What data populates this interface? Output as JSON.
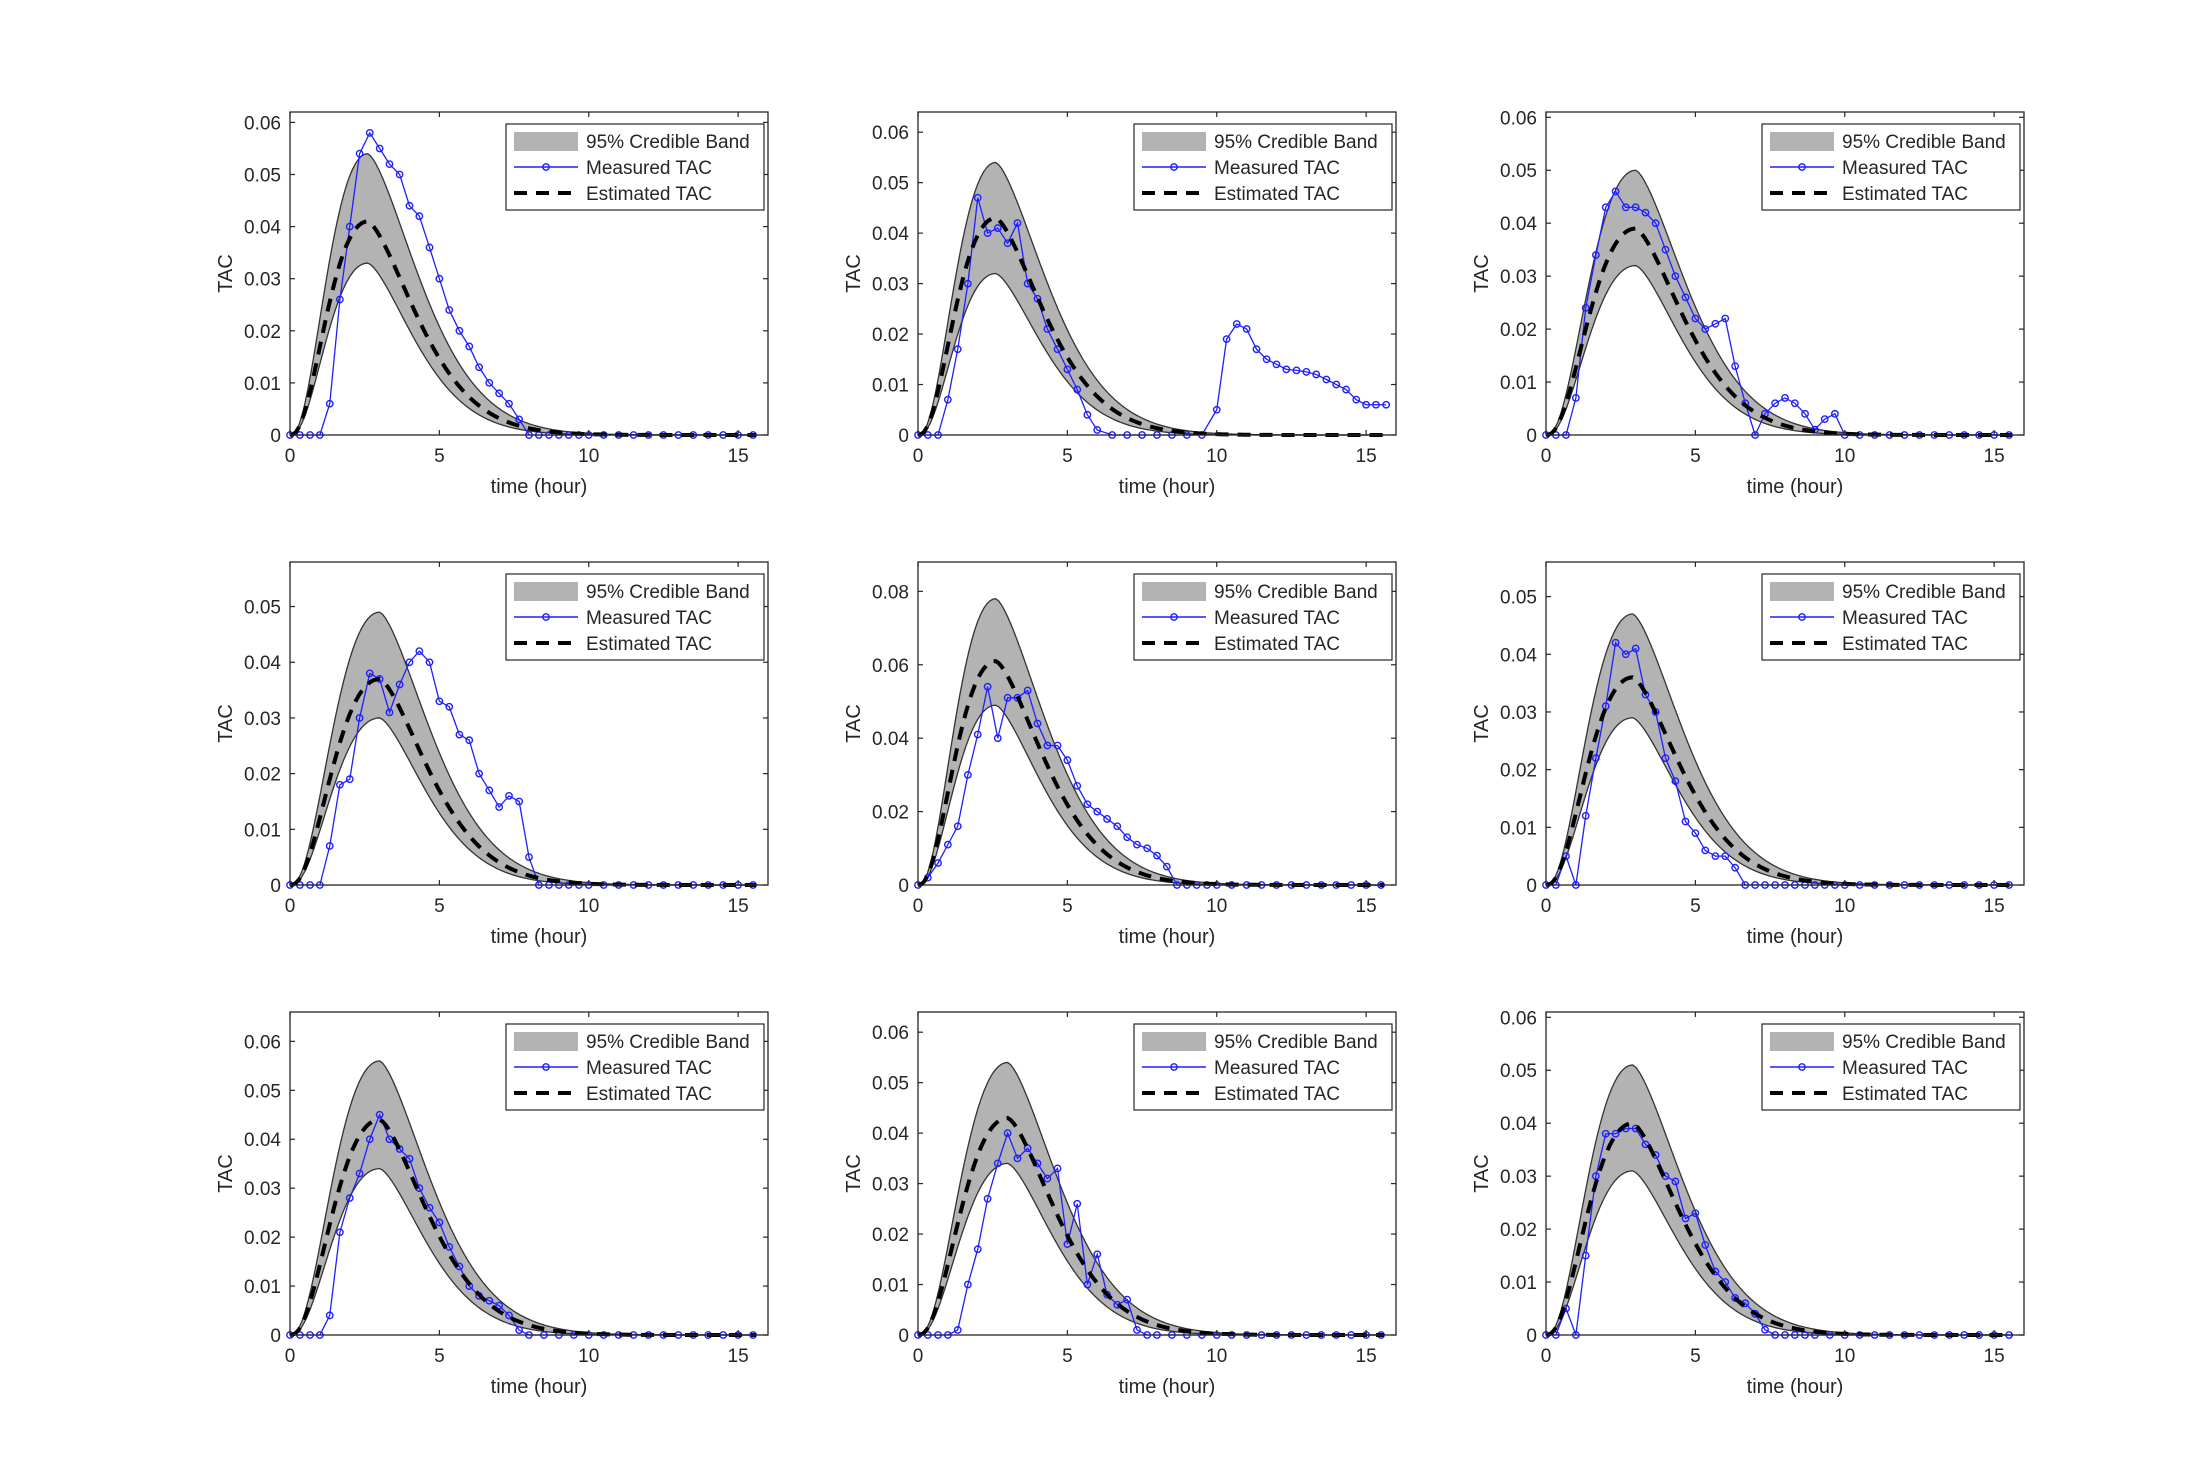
{
  "figure": {
    "panel_count": 9,
    "layout": "3x3"
  },
  "colors": {
    "band_fill": "#b3b3b3",
    "band_edge": "#333333",
    "measured": "#1f1fff",
    "estimated": "#000000",
    "axis": "#262626"
  },
  "chart_data": [
    {
      "type": "line",
      "panel": 1,
      "xlabel": "time (hour)",
      "ylabel": "TAC",
      "xlim": [
        0,
        16
      ],
      "xticks": [
        0,
        5,
        10,
        15
      ],
      "ylim": [
        0,
        0.062
      ],
      "yticks": [
        0,
        0.01,
        0.02,
        0.03,
        0.04,
        0.05,
        0.06
      ],
      "ytick_labels": [
        "0",
        "0.01",
        "0.02",
        "0.03",
        "0.04",
        "0.05",
        "0.06"
      ],
      "legend": [
        "95% Credible Band",
        "Measured TAC",
        "Estimated TAC"
      ],
      "legend_position": "top-right",
      "estimated": {
        "peak_time": 2.6,
        "peak": 0.041,
        "tau": 2.2
      },
      "band": {
        "lower_peak": 0.033,
        "upper_peak": 0.054
      },
      "measured": {
        "x": [
          0,
          0.33,
          0.67,
          1,
          1.33,
          1.67,
          2,
          2.33,
          2.67,
          3,
          3.33,
          3.67,
          4,
          4.33,
          4.67,
          5,
          5.33,
          5.67,
          6,
          6.33,
          6.67,
          7,
          7.33,
          7.67,
          8,
          8.33,
          8.67,
          9,
          9.33,
          9.67,
          10,
          10.5,
          11,
          11.5,
          12,
          12.5,
          13,
          13.5,
          14,
          14.5,
          15,
          15.5
        ],
        "y": [
          0,
          0,
          0,
          0,
          0.006,
          0.026,
          0.04,
          0.054,
          0.058,
          0.055,
          0.052,
          0.05,
          0.044,
          0.042,
          0.036,
          0.03,
          0.024,
          0.02,
          0.017,
          0.013,
          0.01,
          0.008,
          0.006,
          0.003,
          0,
          0,
          0,
          0,
          0,
          0,
          0,
          0,
          0,
          0,
          0,
          0,
          0,
          0,
          0,
          0,
          0,
          0
        ]
      }
    },
    {
      "type": "line",
      "panel": 2,
      "xlabel": "time (hour)",
      "ylabel": "TAC",
      "xlim": [
        0,
        16
      ],
      "xticks": [
        0,
        5,
        10,
        15
      ],
      "ylim": [
        0,
        0.064
      ],
      "yticks": [
        0,
        0.01,
        0.02,
        0.03,
        0.04,
        0.05,
        0.06
      ],
      "ytick_labels": [
        "0",
        "0.01",
        "0.02",
        "0.03",
        "0.04",
        "0.05",
        "0.06"
      ],
      "legend": [
        "95% Credible Band",
        "Measured TAC",
        "Estimated TAC"
      ],
      "legend_position": "top-right",
      "estimated": {
        "peak_time": 2.6,
        "peak": 0.043,
        "tau": 2.2
      },
      "band": {
        "lower_peak": 0.032,
        "upper_peak": 0.054
      },
      "measured": {
        "x": [
          0,
          0.33,
          0.67,
          1,
          1.33,
          1.67,
          2,
          2.33,
          2.67,
          3,
          3.33,
          3.67,
          4,
          4.33,
          4.67,
          5,
          5.33,
          5.67,
          6,
          6.5,
          7,
          7.5,
          8,
          8.5,
          9,
          9.5,
          10,
          10.33,
          10.67,
          11,
          11.33,
          11.67,
          12,
          12.33,
          12.67,
          13,
          13.33,
          13.67,
          14,
          14.33,
          14.67,
          15,
          15.33,
          15.67
        ],
        "y": [
          0,
          0,
          0,
          0.007,
          0.017,
          0.03,
          0.047,
          0.04,
          0.041,
          0.038,
          0.042,
          0.03,
          0.027,
          0.021,
          0.017,
          0.013,
          0.009,
          0.004,
          0.001,
          0,
          0,
          0,
          0,
          0,
          0,
          0,
          0.005,
          0.019,
          0.022,
          0.021,
          0.017,
          0.015,
          0.014,
          0.013,
          0.0128,
          0.0125,
          0.012,
          0.011,
          0.01,
          0.009,
          0.007,
          0.006,
          0.006,
          0.006
        ]
      }
    },
    {
      "type": "line",
      "panel": 3,
      "xlabel": "time (hour)",
      "ylabel": "TAC",
      "xlim": [
        0,
        16
      ],
      "xticks": [
        0,
        5,
        10,
        15
      ],
      "ylim": [
        0,
        0.061
      ],
      "yticks": [
        0,
        0.01,
        0.02,
        0.03,
        0.04,
        0.05,
        0.06
      ],
      "ytick_labels": [
        "0",
        "0.01",
        "0.02",
        "0.03",
        "0.04",
        "0.05",
        "0.06"
      ],
      "legend": [
        "95% Credible Band",
        "Measured TAC",
        "Estimated TAC"
      ],
      "legend_position": "top-right",
      "estimated": {
        "peak_time": 3.0,
        "peak": 0.039,
        "tau": 2.2
      },
      "band": {
        "lower_peak": 0.032,
        "upper_peak": 0.05
      },
      "measured": {
        "x": [
          0,
          0.33,
          0.67,
          1,
          1.33,
          1.67,
          2,
          2.33,
          2.67,
          3,
          3.33,
          3.67,
          4,
          4.33,
          4.67,
          5,
          5.33,
          5.67,
          6,
          6.33,
          6.67,
          7,
          7.33,
          7.67,
          8,
          8.33,
          8.67,
          9,
          9.33,
          9.67,
          10,
          10.5,
          11,
          11.5,
          12,
          12.5,
          13,
          13.5,
          14,
          14.5,
          15,
          15.5
        ],
        "y": [
          0,
          0,
          0,
          0.007,
          0.024,
          0.034,
          0.043,
          0.046,
          0.043,
          0.043,
          0.042,
          0.04,
          0.035,
          0.03,
          0.026,
          0.022,
          0.02,
          0.021,
          0.022,
          0.013,
          0.006,
          0,
          0.004,
          0.006,
          0.007,
          0.006,
          0.004,
          0.001,
          0.003,
          0.004,
          0,
          0,
          0,
          0,
          0,
          0,
          0,
          0,
          0,
          0,
          0,
          0
        ]
      }
    },
    {
      "type": "line",
      "panel": 4,
      "xlabel": "time (hour)",
      "ylabel": "TAC",
      "xlim": [
        0,
        16
      ],
      "xticks": [
        0,
        5,
        10,
        15
      ],
      "ylim": [
        0,
        0.058
      ],
      "yticks": [
        0,
        0.01,
        0.02,
        0.03,
        0.04,
        0.05
      ],
      "ytick_labels": [
        "0",
        "0.01",
        "0.02",
        "0.03",
        "0.04",
        "0.05"
      ],
      "legend": [
        "95% Credible Band",
        "Measured TAC",
        "Estimated TAC"
      ],
      "legend_position": "top-right",
      "estimated": {
        "peak_time": 3.0,
        "peak": 0.037,
        "tau": 2.2
      },
      "band": {
        "lower_peak": 0.03,
        "upper_peak": 0.049
      },
      "measured": {
        "x": [
          0,
          0.33,
          0.67,
          1,
          1.33,
          1.67,
          2,
          2.33,
          2.67,
          3,
          3.33,
          3.67,
          4,
          4.33,
          4.67,
          5,
          5.33,
          5.67,
          6,
          6.33,
          6.67,
          7,
          7.33,
          7.67,
          8,
          8.33,
          8.67,
          9,
          9.33,
          9.67,
          10,
          10.5,
          11,
          11.5,
          12,
          12.5,
          13,
          13.5,
          14,
          14.5,
          15,
          15.5
        ],
        "y": [
          0,
          0,
          0,
          0,
          0.007,
          0.018,
          0.019,
          0.03,
          0.038,
          0.037,
          0.031,
          0.036,
          0.04,
          0.042,
          0.04,
          0.033,
          0.032,
          0.027,
          0.026,
          0.02,
          0.017,
          0.014,
          0.016,
          0.015,
          0.005,
          0,
          0,
          0,
          0,
          0,
          0,
          0,
          0,
          0,
          0,
          0,
          0,
          0,
          0,
          0,
          0,
          0
        ]
      }
    },
    {
      "type": "line",
      "panel": 5,
      "xlabel": "time (hour)",
      "ylabel": "TAC",
      "xlim": [
        0,
        16
      ],
      "xticks": [
        0,
        5,
        10,
        15
      ],
      "ylim": [
        0,
        0.088
      ],
      "yticks": [
        0,
        0.02,
        0.04,
        0.06,
        0.08
      ],
      "ytick_labels": [
        "0",
        "0.02",
        "0.04",
        "0.06",
        "0.08"
      ],
      "legend": [
        "95% Credible Band",
        "Measured TAC",
        "Estimated TAC"
      ],
      "legend_position": "top-right",
      "estimated": {
        "peak_time": 2.6,
        "peak": 0.061,
        "tau": 2.2
      },
      "band": {
        "lower_peak": 0.049,
        "upper_peak": 0.078
      },
      "measured": {
        "x": [
          0,
          0.33,
          0.67,
          1,
          1.33,
          1.67,
          2,
          2.33,
          2.67,
          3,
          3.33,
          3.67,
          4,
          4.33,
          4.67,
          5,
          5.33,
          5.67,
          6,
          6.33,
          6.67,
          7,
          7.33,
          7.67,
          8,
          8.33,
          8.67,
          9,
          9.33,
          9.67,
          10,
          10.5,
          11,
          11.5,
          12,
          12.5,
          13,
          13.5,
          14,
          14.5,
          15,
          15.5
        ],
        "y": [
          0,
          0.002,
          0.006,
          0.011,
          0.016,
          0.03,
          0.041,
          0.054,
          0.04,
          0.051,
          0.051,
          0.053,
          0.044,
          0.038,
          0.038,
          0.034,
          0.027,
          0.022,
          0.02,
          0.018,
          0.016,
          0.013,
          0.011,
          0.01,
          0.008,
          0.005,
          0,
          0,
          0,
          0,
          0,
          0,
          0,
          0,
          0,
          0,
          0,
          0,
          0,
          0,
          0,
          0
        ]
      }
    },
    {
      "type": "line",
      "panel": 6,
      "xlabel": "time (hour)",
      "ylabel": "TAC",
      "xlim": [
        0,
        16
      ],
      "xticks": [
        0,
        5,
        10,
        15
      ],
      "ylim": [
        0,
        0.056
      ],
      "yticks": [
        0,
        0.01,
        0.02,
        0.03,
        0.04,
        0.05
      ],
      "ytick_labels": [
        "0",
        "0.01",
        "0.02",
        "0.03",
        "0.04",
        "0.05"
      ],
      "legend": [
        "95% Credible Band",
        "Measured TAC",
        "Estimated TAC"
      ],
      "legend_position": "top-right",
      "estimated": {
        "peak_time": 2.9,
        "peak": 0.036,
        "tau": 2.2
      },
      "band": {
        "lower_peak": 0.029,
        "upper_peak": 0.047
      },
      "measured": {
        "x": [
          0,
          0.33,
          0.67,
          1,
          1.33,
          1.67,
          2,
          2.33,
          2.67,
          3,
          3.33,
          3.67,
          4,
          4.33,
          4.67,
          5,
          5.33,
          5.67,
          6,
          6.33,
          6.67,
          7,
          7.33,
          7.67,
          8,
          8.33,
          8.67,
          9,
          9.33,
          9.67,
          10,
          10.5,
          11,
          11.5,
          12,
          12.5,
          13,
          13.5,
          14,
          14.5,
          15,
          15.5
        ],
        "y": [
          0,
          0,
          0.005,
          0,
          0.012,
          0.022,
          0.031,
          0.042,
          0.04,
          0.041,
          0.033,
          0.03,
          0.022,
          0.018,
          0.011,
          0.009,
          0.006,
          0.005,
          0.005,
          0.003,
          0,
          0,
          0,
          0,
          0,
          0,
          0,
          0,
          0,
          0,
          0,
          0,
          0,
          0,
          0,
          0,
          0,
          0,
          0,
          0,
          0,
          0
        ]
      }
    },
    {
      "type": "line",
      "panel": 7,
      "xlabel": "time (hour)",
      "ylabel": "TAC",
      "xlim": [
        0,
        16
      ],
      "xticks": [
        0,
        5,
        10,
        15
      ],
      "ylim": [
        0,
        0.066
      ],
      "yticks": [
        0,
        0.01,
        0.02,
        0.03,
        0.04,
        0.05,
        0.06
      ],
      "ytick_labels": [
        "0",
        "0.01",
        "0.02",
        "0.03",
        "0.04",
        "0.05",
        "0.06"
      ],
      "legend": [
        "95% Credible Band",
        "Measured TAC",
        "Estimated TAC"
      ],
      "legend_position": "top-right",
      "estimated": {
        "peak_time": 3.0,
        "peak": 0.044,
        "tau": 2.2
      },
      "band": {
        "lower_peak": 0.034,
        "upper_peak": 0.056
      },
      "measured": {
        "x": [
          0,
          0.33,
          0.67,
          1,
          1.33,
          1.67,
          2,
          2.33,
          2.67,
          3,
          3.33,
          3.67,
          4,
          4.33,
          4.67,
          5,
          5.33,
          5.67,
          6,
          6.33,
          6.67,
          7,
          7.33,
          7.67,
          8,
          8.5,
          9,
          9.5,
          10,
          10.5,
          11,
          11.5,
          12,
          12.5,
          13,
          13.5,
          14,
          14.5,
          15,
          15.5
        ],
        "y": [
          0,
          0,
          0,
          0,
          0.004,
          0.021,
          0.028,
          0.033,
          0.04,
          0.045,
          0.04,
          0.038,
          0.036,
          0.03,
          0.026,
          0.023,
          0.018,
          0.014,
          0.01,
          0.008,
          0.007,
          0.006,
          0.004,
          0.001,
          0,
          0,
          0,
          0,
          0,
          0,
          0,
          0,
          0,
          0,
          0,
          0,
          0,
          0,
          0,
          0
        ]
      }
    },
    {
      "type": "line",
      "panel": 8,
      "xlabel": "time (hour)",
      "ylabel": "TAC",
      "xlim": [
        0,
        16
      ],
      "xticks": [
        0,
        5,
        10,
        15
      ],
      "ylim": [
        0,
        0.064
      ],
      "yticks": [
        0,
        0.01,
        0.02,
        0.03,
        0.04,
        0.05,
        0.06
      ],
      "ytick_labels": [
        "0",
        "0.01",
        "0.02",
        "0.03",
        "0.04",
        "0.05",
        "0.06"
      ],
      "legend": [
        "95% Credible Band",
        "Measured TAC",
        "Estimated TAC"
      ],
      "legend_position": "top-right",
      "estimated": {
        "peak_time": 3.0,
        "peak": 0.043,
        "tau": 2.2
      },
      "band": {
        "lower_peak": 0.034,
        "upper_peak": 0.054
      },
      "measured": {
        "x": [
          0,
          0.33,
          0.67,
          1,
          1.33,
          1.67,
          2,
          2.33,
          2.67,
          3,
          3.33,
          3.67,
          4,
          4.33,
          4.67,
          5,
          5.33,
          5.67,
          6,
          6.33,
          6.67,
          7,
          7.33,
          7.67,
          8,
          8.5,
          9,
          9.5,
          10,
          10.5,
          11,
          11.5,
          12,
          12.5,
          13,
          13.5,
          14,
          14.5,
          15,
          15.5
        ],
        "y": [
          0,
          0,
          0,
          0,
          0.001,
          0.01,
          0.017,
          0.027,
          0.034,
          0.04,
          0.035,
          0.037,
          0.034,
          0.031,
          0.033,
          0.018,
          0.026,
          0.01,
          0.016,
          0.008,
          0.006,
          0.007,
          0.001,
          0,
          0,
          0,
          0,
          0,
          0,
          0,
          0,
          0,
          0,
          0,
          0,
          0,
          0,
          0,
          0,
          0
        ]
      }
    },
    {
      "type": "line",
      "panel": 9,
      "xlabel": "time (hour)",
      "ylabel": "TAC",
      "xlim": [
        0,
        16
      ],
      "xticks": [
        0,
        5,
        10,
        15
      ],
      "ylim": [
        0,
        0.061
      ],
      "yticks": [
        0,
        0.01,
        0.02,
        0.03,
        0.04,
        0.05,
        0.06
      ],
      "ytick_labels": [
        "0",
        "0.01",
        "0.02",
        "0.03",
        "0.04",
        "0.05",
        "0.06"
      ],
      "legend": [
        "95% Credible Band",
        "Measured TAC",
        "Estimated TAC"
      ],
      "legend_position": "top-right",
      "estimated": {
        "peak_time": 2.9,
        "peak": 0.04,
        "tau": 2.2
      },
      "band": {
        "lower_peak": 0.031,
        "upper_peak": 0.051
      },
      "measured": {
        "x": [
          0,
          0.33,
          0.67,
          1,
          1.33,
          1.67,
          2,
          2.33,
          2.67,
          3,
          3.33,
          3.67,
          4,
          4.33,
          4.67,
          5,
          5.33,
          5.67,
          6,
          6.33,
          6.67,
          7,
          7.33,
          7.67,
          8,
          8.33,
          8.67,
          9,
          9.5,
          10,
          10.5,
          11,
          11.5,
          12,
          12.5,
          13,
          13.5,
          14,
          14.5,
          15,
          15.5
        ],
        "y": [
          0,
          0,
          0.005,
          0,
          0.015,
          0.03,
          0.038,
          0.038,
          0.039,
          0.039,
          0.036,
          0.034,
          0.03,
          0.029,
          0.022,
          0.023,
          0.017,
          0.012,
          0.01,
          0.007,
          0.006,
          0.004,
          0.001,
          0,
          0,
          0,
          0,
          0,
          0,
          0,
          0,
          0,
          0,
          0,
          0,
          0,
          0,
          0,
          0,
          0,
          0
        ]
      }
    }
  ]
}
